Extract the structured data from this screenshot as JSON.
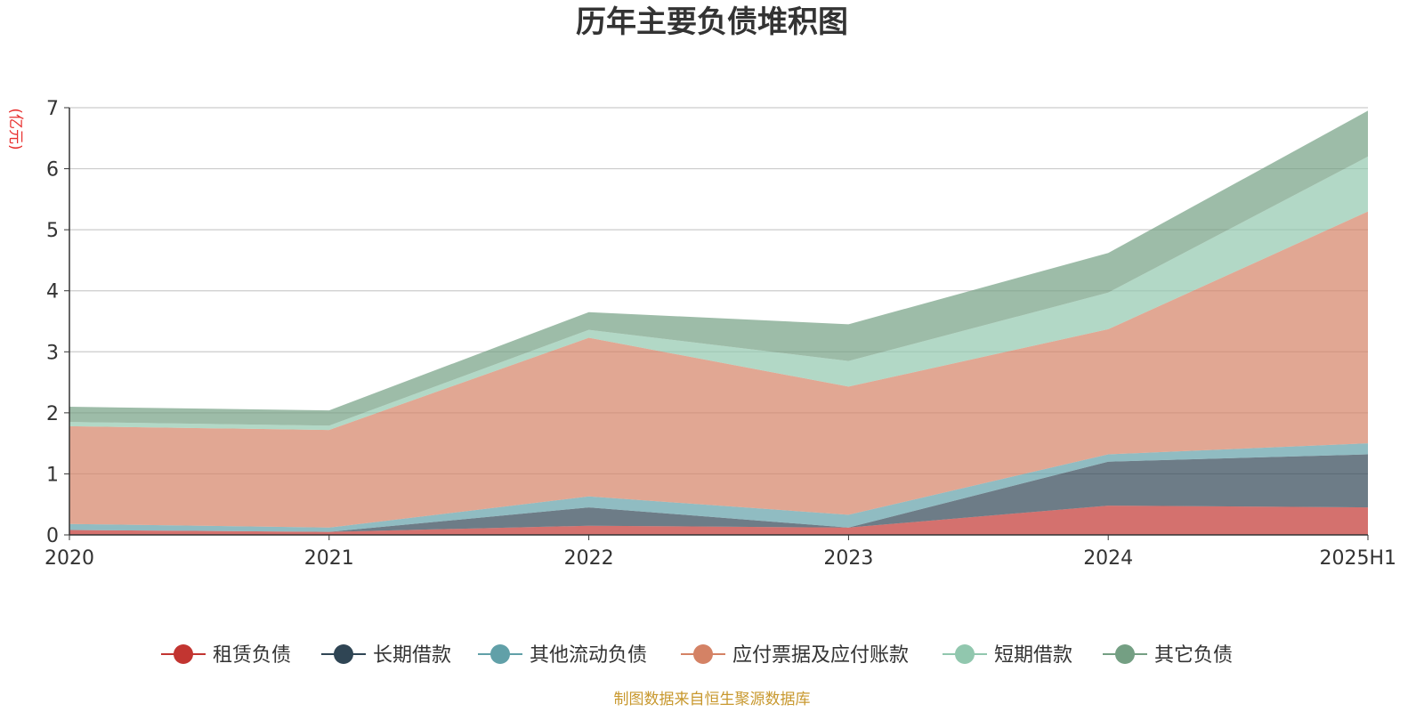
{
  "chart_data": {
    "type": "area",
    "stacked": true,
    "title": "历年主要负债堆积图",
    "unit": "(亿元)",
    "categories": [
      "2020",
      "2021",
      "2022",
      "2023",
      "2024",
      "2025H1"
    ],
    "ylim": [
      0,
      7
    ],
    "yticks": [
      "0",
      "1",
      "2",
      "3",
      "4",
      "5",
      "6",
      "7"
    ],
    "grid": true,
    "legend_position": "bottom",
    "series": [
      {
        "name": "租赁负债",
        "color": "#c23531",
        "values": [
          0.08,
          0.05,
          0.15,
          0.12,
          0.48,
          0.45
        ]
      },
      {
        "name": "长期借款",
        "color": "#2f4554",
        "values": [
          0.0,
          0.0,
          0.3,
          0.0,
          0.72,
          0.87
        ]
      },
      {
        "name": "其他流动负债",
        "color": "#61a0a8",
        "values": [
          0.1,
          0.07,
          0.18,
          0.21,
          0.12,
          0.18
        ]
      },
      {
        "name": "应付票据及应付账款",
        "color": "#d48265",
        "values": [
          1.6,
          1.6,
          2.6,
          2.1,
          2.05,
          3.8
        ]
      },
      {
        "name": "短期借款",
        "color": "#91c7ae",
        "values": [
          0.07,
          0.07,
          0.13,
          0.42,
          0.6,
          0.9
        ]
      },
      {
        "name": "其它负债",
        "color": "#749f83",
        "values": [
          0.25,
          0.25,
          0.29,
          0.6,
          0.65,
          0.75
        ]
      }
    ],
    "source": "制图数据来自恒生聚源数据库"
  }
}
